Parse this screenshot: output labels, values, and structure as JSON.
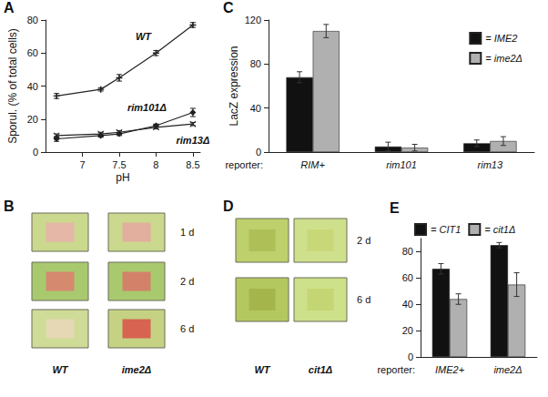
{
  "chart_data": [
    {
      "panel": "A",
      "type": "line",
      "x_label": "pH",
      "y_label": "Sporul. (% of total cells)",
      "x": [
        6.65,
        7.25,
        7.5,
        8,
        8.5
      ],
      "series": [
        {
          "name": "WT",
          "color": "#222222",
          "marker": "cross",
          "values": [
            34,
            38,
            45,
            60,
            77
          ],
          "errors": [
            1.5,
            1,
            2,
            1.5,
            1.5
          ]
        },
        {
          "name": "rim101Δ",
          "color": "#222222",
          "marker": "diamond",
          "values": [
            8,
            10,
            11,
            16,
            24
          ],
          "errors": [
            1.5,
            1,
            1,
            1,
            2.5
          ]
        },
        {
          "name": "rim13Δ",
          "color": "#222222",
          "marker": "x",
          "values": [
            10,
            11,
            12,
            15,
            17
          ],
          "errors": [
            1,
            1,
            1,
            1,
            1
          ]
        }
      ],
      "xlim": [
        6.5,
        8.6
      ],
      "xticks": [
        7,
        7.5,
        8,
        8.5
      ],
      "ylim": [
        0,
        80
      ],
      "yticks": [
        0,
        20,
        40,
        60,
        80
      ],
      "grid": false
    },
    {
      "panel": "C",
      "type": "bar",
      "x_label": "reporter:",
      "y_label": "LacZ expression",
      "categories": [
        "RIM+",
        "rim101",
        "rim13"
      ],
      "series": [
        {
          "name": "= IME2",
          "color": "#111111",
          "values": [
            68,
            5,
            8
          ],
          "errors": [
            5,
            4,
            3
          ]
        },
        {
          "name": "= ime2Δ",
          "color": "#b0b0b0",
          "values": [
            110,
            4,
            10
          ],
          "errors": [
            6,
            3,
            4
          ]
        }
      ],
      "ylim": [
        0,
        120
      ],
      "yticks": [
        0,
        40,
        80,
        120
      ],
      "legend": "top-right",
      "grid": false
    },
    {
      "panel": "E",
      "type": "bar",
      "x_label": "reporter:",
      "categories": [
        "IME2+",
        "ime2Δ"
      ],
      "series": [
        {
          "name": "= CIT1",
          "color": "#111111",
          "values": [
            67,
            85
          ],
          "errors": [
            4,
            2
          ]
        },
        {
          "name": "= cit1Δ",
          "color": "#b0b0b0",
          "values": [
            44,
            55
          ],
          "errors": [
            4,
            9
          ]
        }
      ],
      "ylim": [
        0,
        90
      ],
      "yticks": [
        0,
        20,
        40,
        60,
        80
      ],
      "legend": "top",
      "grid": false
    }
  ],
  "images": [
    {
      "panel": "B",
      "rows": [
        "1 d",
        "2 d",
        "6 d"
      ],
      "columns": [
        "WT",
        "ime2Δ"
      ]
    },
    {
      "panel": "D",
      "rows": [
        "2 d",
        "6 d"
      ],
      "columns": [
        "WT",
        "cit1Δ"
      ]
    }
  ]
}
